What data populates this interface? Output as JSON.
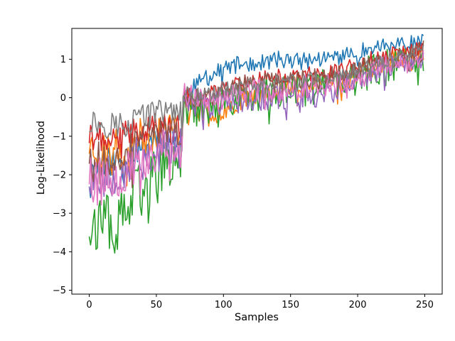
{
  "chart_data": {
    "type": "line",
    "xlabel": "Samples",
    "ylabel": "Log-Likelihood",
    "xlim": [
      -13,
      263
    ],
    "ylim": [
      -5.1,
      1.8
    ],
    "xticks": [
      0,
      50,
      100,
      150,
      200,
      250
    ],
    "yticks": [
      -5,
      -4,
      -3,
      -2,
      -1,
      0,
      1
    ],
    "grid": false,
    "legend": "none",
    "n_samples": 250,
    "series": [
      {
        "color": "#1f77b4",
        "anchors": [
          [
            0,
            -2.1
          ],
          [
            10,
            -1.6
          ],
          [
            20,
            -1.7
          ],
          [
            30,
            -1.5
          ],
          [
            40,
            -1.2
          ],
          [
            50,
            -1.0
          ],
          [
            60,
            -1.1
          ],
          [
            69,
            -1.2
          ],
          [
            70,
            0.0
          ],
          [
            80,
            0.35
          ],
          [
            90,
            0.55
          ],
          [
            100,
            0.75
          ],
          [
            110,
            0.85
          ],
          [
            120,
            0.9
          ],
          [
            130,
            0.9
          ],
          [
            140,
            1.0
          ],
          [
            150,
            0.95
          ],
          [
            160,
            0.95
          ],
          [
            170,
            1.0
          ],
          [
            180,
            1.05
          ],
          [
            190,
            1.1
          ],
          [
            200,
            1.15
          ],
          [
            210,
            1.3
          ],
          [
            220,
            1.35
          ],
          [
            230,
            1.35
          ],
          [
            240,
            1.4
          ],
          [
            249,
            1.45
          ]
        ],
        "noise": 0.22,
        "seed": 11
      },
      {
        "color": "#ff7f0e",
        "anchors": [
          [
            0,
            -1.2
          ],
          [
            10,
            -1.4
          ],
          [
            20,
            -1.3
          ],
          [
            30,
            -1.2
          ],
          [
            40,
            -1.0
          ],
          [
            50,
            -0.9
          ],
          [
            60,
            -0.8
          ],
          [
            69,
            -0.9
          ],
          [
            70,
            -0.1
          ],
          [
            80,
            -0.3
          ],
          [
            90,
            -0.5
          ],
          [
            100,
            -0.3
          ],
          [
            110,
            -0.1
          ],
          [
            120,
            0.1
          ],
          [
            130,
            0.1
          ],
          [
            140,
            0.2
          ],
          [
            150,
            0.3
          ],
          [
            160,
            0.3
          ],
          [
            170,
            0.4
          ],
          [
            180,
            0.5
          ],
          [
            190,
            0.4
          ],
          [
            200,
            0.6
          ],
          [
            210,
            0.8
          ],
          [
            220,
            0.95
          ],
          [
            230,
            1.05
          ],
          [
            240,
            1.1
          ],
          [
            249,
            1.2
          ]
        ],
        "noise": 0.28,
        "seed": 23
      },
      {
        "color": "#2ca02c",
        "anchors": [
          [
            0,
            -3.2
          ],
          [
            10,
            -3.3
          ],
          [
            20,
            -3.4
          ],
          [
            30,
            -2.8
          ],
          [
            40,
            -2.3
          ],
          [
            50,
            -2.0
          ],
          [
            60,
            -1.8
          ],
          [
            69,
            -1.6
          ],
          [
            70,
            -0.2
          ],
          [
            80,
            -0.3
          ],
          [
            90,
            -0.3
          ],
          [
            100,
            -0.2
          ],
          [
            110,
            0.0
          ],
          [
            120,
            0.1
          ],
          [
            130,
            0.1
          ],
          [
            140,
            0.1
          ],
          [
            150,
            0.2
          ],
          [
            160,
            0.2
          ],
          [
            170,
            0.3
          ],
          [
            180,
            0.3
          ],
          [
            190,
            0.4
          ],
          [
            200,
            0.5
          ],
          [
            210,
            0.7
          ],
          [
            220,
            0.85
          ],
          [
            230,
            0.9
          ],
          [
            240,
            1.0
          ],
          [
            249,
            1.05
          ]
        ],
        "noise": 0.45,
        "seed": 37
      },
      {
        "color": "#d62728",
        "anchors": [
          [
            0,
            -1.0
          ],
          [
            10,
            -1.0
          ],
          [
            20,
            -1.1
          ],
          [
            30,
            -0.9
          ],
          [
            40,
            -0.8
          ],
          [
            50,
            -0.7
          ],
          [
            60,
            -0.8
          ],
          [
            69,
            -0.8
          ],
          [
            70,
            0.1
          ],
          [
            80,
            0.0
          ],
          [
            90,
            0.1
          ],
          [
            100,
            0.3
          ],
          [
            110,
            0.4
          ],
          [
            120,
            0.45
          ],
          [
            130,
            0.5
          ],
          [
            140,
            0.55
          ],
          [
            150,
            0.55
          ],
          [
            160,
            0.6
          ],
          [
            170,
            0.65
          ],
          [
            180,
            0.7
          ],
          [
            190,
            0.75
          ],
          [
            200,
            0.85
          ],
          [
            210,
            1.0
          ],
          [
            220,
            1.1
          ],
          [
            230,
            1.15
          ],
          [
            240,
            1.2
          ],
          [
            249,
            1.3
          ]
        ],
        "noise": 0.2,
        "seed": 41
      },
      {
        "color": "#9467bd",
        "anchors": [
          [
            0,
            -2.0
          ],
          [
            10,
            -2.0
          ],
          [
            20,
            -1.9
          ],
          [
            30,
            -1.7
          ],
          [
            40,
            -1.6
          ],
          [
            50,
            -1.4
          ],
          [
            60,
            -1.3
          ],
          [
            69,
            -1.2
          ],
          [
            70,
            -0.1
          ],
          [
            80,
            -0.2
          ],
          [
            90,
            -0.2
          ],
          [
            100,
            -0.1
          ],
          [
            110,
            -0.1
          ],
          [
            120,
            0.0
          ],
          [
            130,
            0.0
          ],
          [
            140,
            0.0
          ],
          [
            150,
            0.05
          ],
          [
            160,
            0.1
          ],
          [
            170,
            0.1
          ],
          [
            180,
            0.2
          ],
          [
            190,
            0.3
          ],
          [
            200,
            0.4
          ],
          [
            210,
            0.6
          ],
          [
            220,
            0.75
          ],
          [
            230,
            0.85
          ],
          [
            240,
            0.95
          ],
          [
            249,
            1.05
          ]
        ],
        "noise": 0.35,
        "seed": 53
      },
      {
        "color": "#8c564b",
        "anchors": [
          [
            0,
            -1.5
          ],
          [
            10,
            -1.6
          ],
          [
            20,
            -1.5
          ],
          [
            30,
            -1.3
          ],
          [
            40,
            -1.1
          ],
          [
            50,
            -0.9
          ],
          [
            60,
            -0.8
          ],
          [
            69,
            -0.8
          ],
          [
            70,
            -0.05
          ],
          [
            80,
            0.0
          ],
          [
            90,
            0.05
          ],
          [
            100,
            0.2
          ],
          [
            110,
            0.3
          ],
          [
            120,
            0.35
          ],
          [
            130,
            0.4
          ],
          [
            140,
            0.45
          ],
          [
            150,
            0.45
          ],
          [
            160,
            0.5
          ],
          [
            170,
            0.55
          ],
          [
            180,
            0.6
          ],
          [
            190,
            0.65
          ],
          [
            200,
            0.75
          ],
          [
            210,
            0.9
          ],
          [
            220,
            1.0
          ],
          [
            230,
            1.05
          ],
          [
            240,
            1.15
          ],
          [
            249,
            1.25
          ]
        ],
        "noise": 0.25,
        "seed": 67
      },
      {
        "color": "#e377c2",
        "anchors": [
          [
            0,
            -2.0
          ],
          [
            10,
            -2.1
          ],
          [
            20,
            -2.1
          ],
          [
            30,
            -1.9
          ],
          [
            40,
            -1.7
          ],
          [
            50,
            -1.4
          ],
          [
            60,
            -1.3
          ],
          [
            69,
            -1.3
          ],
          [
            70,
            0.1
          ],
          [
            80,
            0.0
          ],
          [
            90,
            -0.1
          ],
          [
            100,
            0.0
          ],
          [
            110,
            0.1
          ],
          [
            120,
            0.2
          ],
          [
            130,
            0.2
          ],
          [
            140,
            0.2
          ],
          [
            150,
            0.2
          ],
          [
            160,
            0.3
          ],
          [
            170,
            0.3
          ],
          [
            180,
            0.35
          ],
          [
            190,
            0.4
          ],
          [
            200,
            0.5
          ],
          [
            210,
            0.65
          ],
          [
            220,
            0.8
          ],
          [
            230,
            0.85
          ],
          [
            240,
            0.95
          ],
          [
            249,
            1.05
          ]
        ],
        "noise": 0.3,
        "seed": 79
      },
      {
        "color": "#7f7f7f",
        "anchors": [
          [
            0,
            -0.6
          ],
          [
            10,
            -0.7
          ],
          [
            20,
            -0.7
          ],
          [
            30,
            -0.6
          ],
          [
            40,
            -0.5
          ],
          [
            50,
            -0.4
          ],
          [
            60,
            -0.3
          ],
          [
            69,
            -0.3
          ],
          [
            70,
            0.15
          ],
          [
            80,
            0.05
          ],
          [
            90,
            0.1
          ],
          [
            100,
            0.2
          ],
          [
            110,
            0.25
          ],
          [
            120,
            0.3
          ],
          [
            130,
            0.35
          ],
          [
            140,
            0.4
          ],
          [
            150,
            0.4
          ],
          [
            160,
            0.45
          ],
          [
            170,
            0.5
          ],
          [
            180,
            0.55
          ],
          [
            190,
            0.6
          ],
          [
            200,
            0.7
          ],
          [
            210,
            0.85
          ],
          [
            220,
            0.95
          ],
          [
            230,
            1.05
          ],
          [
            240,
            1.15
          ],
          [
            249,
            1.3
          ]
        ],
        "noise": 0.2,
        "seed": 97
      }
    ]
  }
}
